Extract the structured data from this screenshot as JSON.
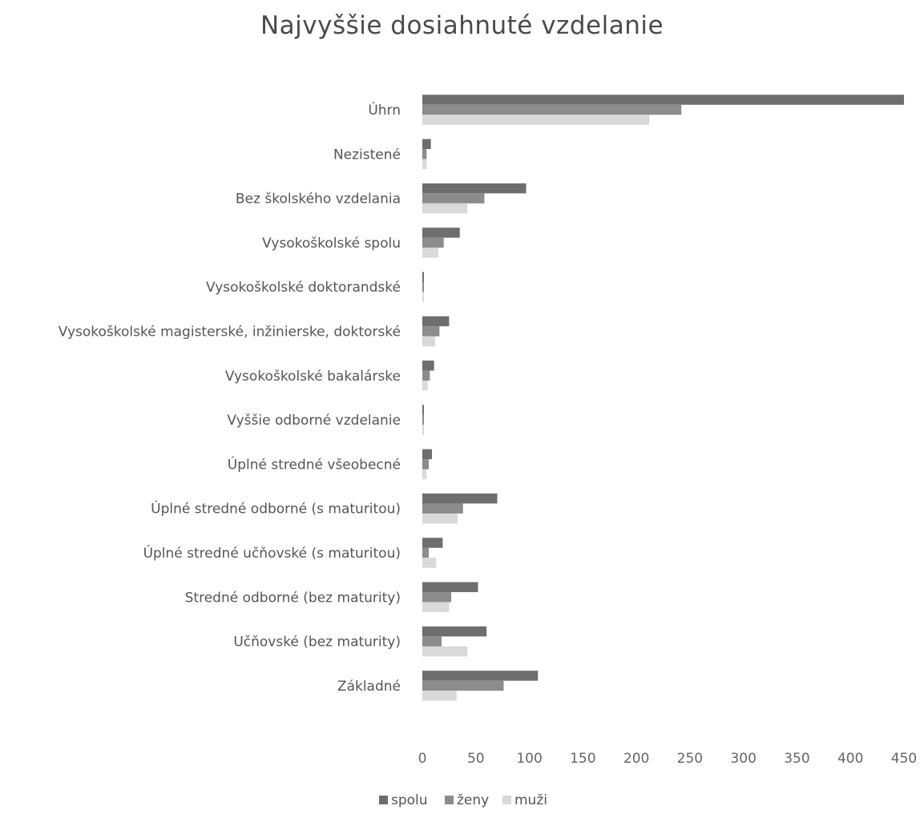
{
  "chart_data": {
    "type": "bar",
    "orientation": "horizontal",
    "title": "Najvyššie dosiahnuté vzdelanie",
    "categories": [
      "Úhrn",
      "Nezistené",
      "Bez školského vzdelania",
      "Vysokoškolské spolu",
      "Vysokoškolské doktorandské",
      "Vysokoškolské magisterské, inžinierske, doktorské",
      "Vysokoškolské bakalárske",
      "Vyššie odborné vzdelanie",
      "Úplné stredné všeobecné",
      "Úplné stredné odborné (s maturitou)",
      "Úplné stredné učňovské (s maturitou)",
      "Stredné odborné (bez maturity)",
      "Učňovské (bez maturity)",
      "Základné"
    ],
    "series": [
      {
        "name": "spolu",
        "color": "#6e6e6e",
        "values": [
          450,
          8,
          97,
          35,
          1,
          25,
          11,
          1,
          9,
          70,
          19,
          52,
          60,
          108
        ]
      },
      {
        "name": "ženy",
        "color": "#8c8c8c",
        "values": [
          242,
          4,
          58,
          20,
          0,
          16,
          7,
          0,
          6,
          38,
          6,
          27,
          18,
          76
        ]
      },
      {
        "name": "muži",
        "color": "#d9d9d9",
        "values": [
          212,
          4,
          42,
          15,
          0,
          12,
          5,
          0,
          4,
          33,
          13,
          25,
          42,
          32
        ]
      }
    ],
    "xlim": [
      0,
      450
    ],
    "xticks": [
      "0",
      "50",
      "100",
      "150",
      "200",
      "250",
      "300",
      "350",
      "400",
      "450"
    ],
    "xlabel": "",
    "ylabel": "",
    "grid": false,
    "legend_position": "bottom"
  }
}
